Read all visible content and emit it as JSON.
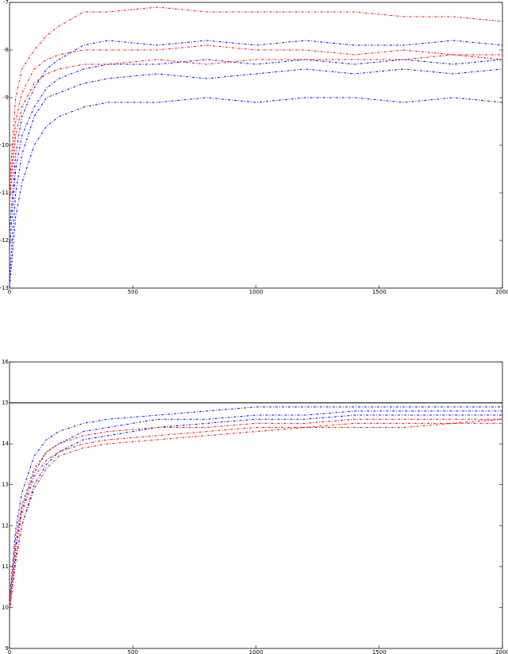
{
  "chart_data": [
    {
      "type": "line",
      "x": [
        0,
        25,
        50,
        100,
        150,
        200,
        300,
        400,
        600,
        800,
        1000,
        1200,
        1400,
        1600,
        1800,
        2000
      ],
      "xlim": [
        0,
        2000
      ],
      "xticks": [
        0,
        500,
        1000,
        1500,
        2000
      ],
      "ylim": [
        -13,
        -7
      ],
      "yticks": [
        -13,
        -12,
        -11,
        -10,
        -9,
        -8,
        -7
      ],
      "series": [
        {
          "color": "#0000ff",
          "values": [
            -12.8,
            -11.0,
            -10.2,
            -9.4,
            -9.0,
            -8.9,
            -8.7,
            -8.6,
            -8.5,
            -8.6,
            -8.5,
            -8.4,
            -8.5,
            -8.4,
            -8.5,
            -8.4
          ]
        },
        {
          "color": "#0000ff",
          "values": [
            -12.2,
            -10.5,
            -9.8,
            -9.2,
            -8.8,
            -8.6,
            -8.4,
            -8.3,
            -8.3,
            -8.2,
            -8.3,
            -8.2,
            -8.3,
            -8.2,
            -8.3,
            -8.2
          ]
        },
        {
          "color": "#0000ff",
          "values": [
            -13.0,
            -11.5,
            -10.8,
            -10.0,
            -9.6,
            -9.4,
            -9.2,
            -9.1,
            -9.1,
            -9.0,
            -9.1,
            -9.0,
            -9.0,
            -9.1,
            -9.0,
            -9.1
          ]
        },
        {
          "color": "#0000ff",
          "values": [
            -11.8,
            -10.2,
            -9.4,
            -8.8,
            -8.4,
            -8.2,
            -7.9,
            -7.8,
            -7.9,
            -7.8,
            -7.9,
            -7.8,
            -7.9,
            -7.9,
            -7.8,
            -7.9
          ]
        },
        {
          "color": "#ff0000",
          "values": [
            -11.0,
            -9.5,
            -8.9,
            -8.4,
            -8.2,
            -8.1,
            -8.0,
            -8.0,
            -8.0,
            -7.9,
            -8.0,
            -8.0,
            -8.1,
            -8.0,
            -8.1,
            -8.1
          ]
        },
        {
          "color": "#ff0000",
          "values": [
            -10.8,
            -9.0,
            -8.4,
            -8.0,
            -7.7,
            -7.5,
            -7.2,
            -7.2,
            -7.1,
            -7.2,
            -7.2,
            -7.2,
            -7.2,
            -7.3,
            -7.3,
            -7.4
          ]
        },
        {
          "color": "#ff0000",
          "values": [
            -11.2,
            -9.8,
            -9.2,
            -8.7,
            -8.5,
            -8.4,
            -8.3,
            -8.3,
            -8.2,
            -8.3,
            -8.2,
            -8.2,
            -8.2,
            -8.2,
            -8.1,
            -8.2
          ]
        }
      ]
    },
    {
      "type": "line",
      "x": [
        0,
        25,
        50,
        100,
        150,
        200,
        300,
        400,
        600,
        800,
        1000,
        1200,
        1400,
        1600,
        1800,
        2000
      ],
      "xlim": [
        0,
        2000
      ],
      "xticks": [
        0,
        500,
        1000,
        1500,
        2000
      ],
      "ylim": [
        9,
        16
      ],
      "yticks": [
        9,
        10,
        11,
        12,
        13,
        14,
        15,
        16
      ],
      "hline": 15,
      "series": [
        {
          "color": "#0000ff",
          "values": [
            10.0,
            11.5,
            12.4,
            13.3,
            13.8,
            14.0,
            14.3,
            14.4,
            14.6,
            14.6,
            14.7,
            14.7,
            14.8,
            14.8,
            14.8,
            14.8
          ]
        },
        {
          "color": "#0000ff",
          "values": [
            10.2,
            11.9,
            12.8,
            13.7,
            14.1,
            14.3,
            14.5,
            14.6,
            14.7,
            14.8,
            14.9,
            14.9,
            14.9,
            14.9,
            14.9,
            14.9
          ]
        },
        {
          "color": "#0000ff",
          "values": [
            9.9,
            11.2,
            12.0,
            13.0,
            13.5,
            13.8,
            14.1,
            14.2,
            14.4,
            14.5,
            14.6,
            14.6,
            14.7,
            14.7,
            14.7,
            14.7
          ]
        },
        {
          "color": "#ff0000",
          "values": [
            10.0,
            11.4,
            12.3,
            13.2,
            13.6,
            13.8,
            14.0,
            14.1,
            14.2,
            14.3,
            14.4,
            14.4,
            14.5,
            14.5,
            14.5,
            14.6
          ]
        },
        {
          "color": "#ff0000",
          "values": [
            10.1,
            11.7,
            12.5,
            13.4,
            13.8,
            14.0,
            14.2,
            14.3,
            14.4,
            14.4,
            14.5,
            14.5,
            14.6,
            14.6,
            14.6,
            14.6
          ]
        },
        {
          "color": "#ff0000",
          "values": [
            9.9,
            11.1,
            12.0,
            12.9,
            13.4,
            13.7,
            13.9,
            14.0,
            14.1,
            14.2,
            14.3,
            14.4,
            14.4,
            14.4,
            14.5,
            14.5
          ]
        }
      ]
    }
  ]
}
